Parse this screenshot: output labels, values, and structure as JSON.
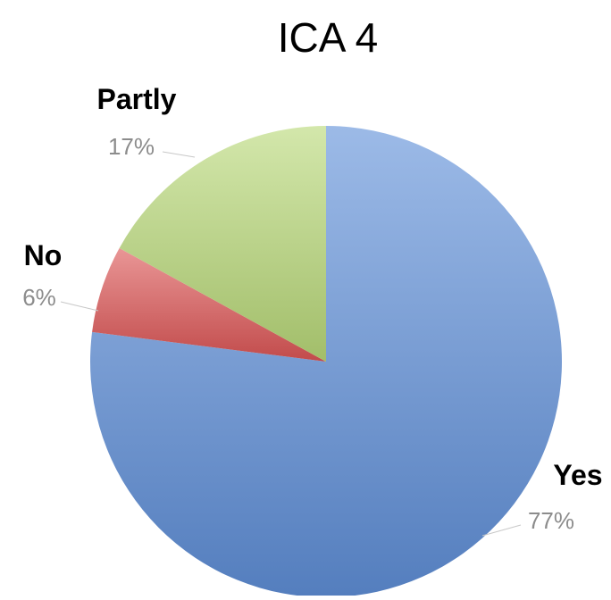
{
  "chart_data": {
    "type": "pie",
    "title": "ICA 4",
    "categories": [
      "Yes",
      "No",
      "Partly"
    ],
    "values": [
      77,
      6,
      17
    ],
    "value_labels": [
      "77%",
      "6%",
      "17%"
    ],
    "colors": [
      "#5f8fd8",
      "#dc5555",
      "#b8d878"
    ],
    "start_angle_deg": 0,
    "direction": "clockwise",
    "legend": "none",
    "data_labels": "outside with leader lines"
  }
}
